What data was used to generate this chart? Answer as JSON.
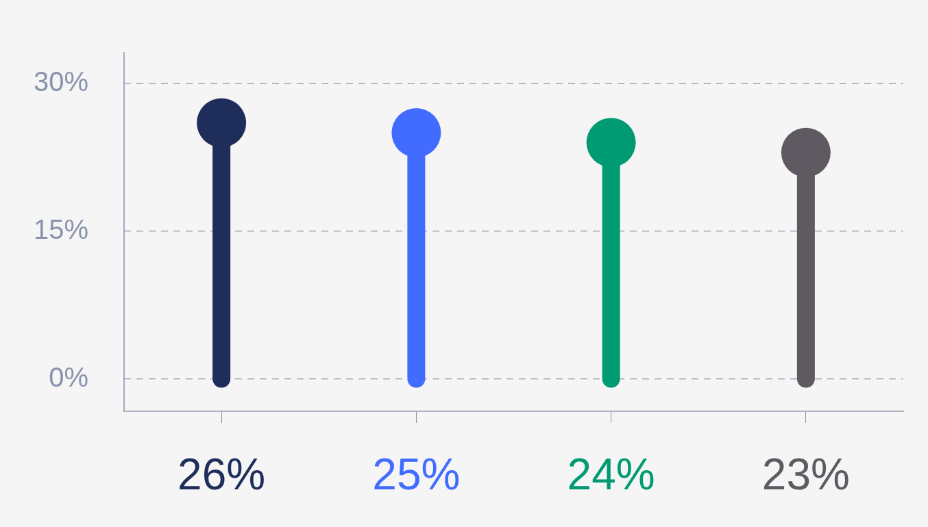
{
  "chart_data": {
    "type": "lollipop",
    "categories": [
      null,
      null,
      null,
      null
    ],
    "values": [
      26,
      25,
      24,
      23
    ],
    "colors": [
      "#1f2d5a",
      "#416cff",
      "#009b72",
      "#5f5a62"
    ],
    "ylim": [
      -3.3,
      33.2
    ],
    "yticks": [
      {
        "value": 0,
        "label": "0%"
      },
      {
        "value": 15,
        "label": "15%"
      },
      {
        "value": 30,
        "label": "30%"
      }
    ],
    "value_labels": [
      "26%",
      "25%",
      "24%",
      "23%"
    ],
    "grid": "y",
    "legend": false
  }
}
